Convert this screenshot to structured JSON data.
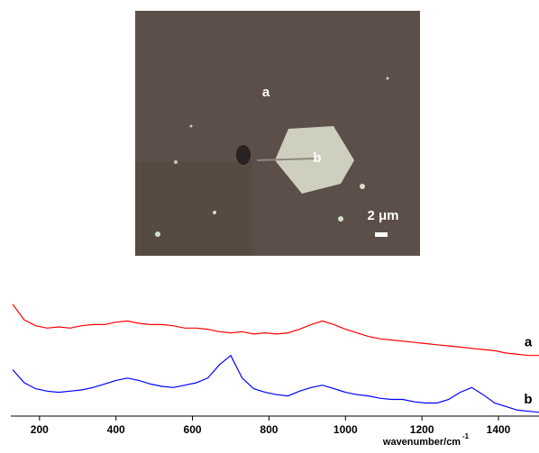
{
  "image": {
    "labels": [
      "a",
      "b"
    ],
    "scale_bar": "2 μm"
  },
  "chart_data": {
    "type": "line",
    "x_label": "wavenumber/cm",
    "x_label_sup": "-1",
    "x": [
      130,
      160,
      190,
      220,
      250,
      280,
      310,
      340,
      370,
      400,
      430,
      460,
      490,
      520,
      550,
      580,
      610,
      640,
      670,
      700,
      730,
      760,
      790,
      820,
      850,
      880,
      910,
      940,
      970,
      1000,
      1030,
      1060,
      1090,
      1120,
      1150,
      1180,
      1210,
      1240,
      1270,
      1300,
      1330,
      1360,
      1390,
      1420,
      1450,
      1480,
      1510
    ],
    "series": [
      {
        "name": "a",
        "color": "#ff0000",
        "values": [
          94,
          81,
          76,
          74,
          75,
          74,
          76,
          77,
          77,
          79,
          80,
          78,
          77,
          77,
          76,
          74,
          74,
          73,
          71,
          70,
          71,
          69,
          70,
          69,
          70,
          73,
          77,
          80,
          77,
          73,
          70,
          67,
          65,
          64,
          63,
          62,
          61,
          60,
          59,
          58,
          57,
          56,
          55,
          53,
          52,
          51,
          51
        ]
      },
      {
        "name": "b",
        "color": "#0000ff",
        "values": [
          39,
          28,
          23,
          21,
          20,
          21,
          22,
          24,
          27,
          30,
          32,
          30,
          27,
          25,
          24,
          26,
          28,
          32,
          43,
          51,
          32,
          23,
          20,
          18,
          17,
          21,
          24,
          26,
          23,
          20,
          18,
          17,
          15,
          14,
          14,
          12,
          11,
          11,
          14,
          20,
          24,
          18,
          11,
          8,
          5,
          4,
          3
        ]
      }
    ],
    "xlim": [
      125,
      1506
    ],
    "xticks": [
      200,
      400,
      600,
      800,
      1000,
      1200,
      1400
    ],
    "ylim": [
      0,
      100
    ]
  }
}
